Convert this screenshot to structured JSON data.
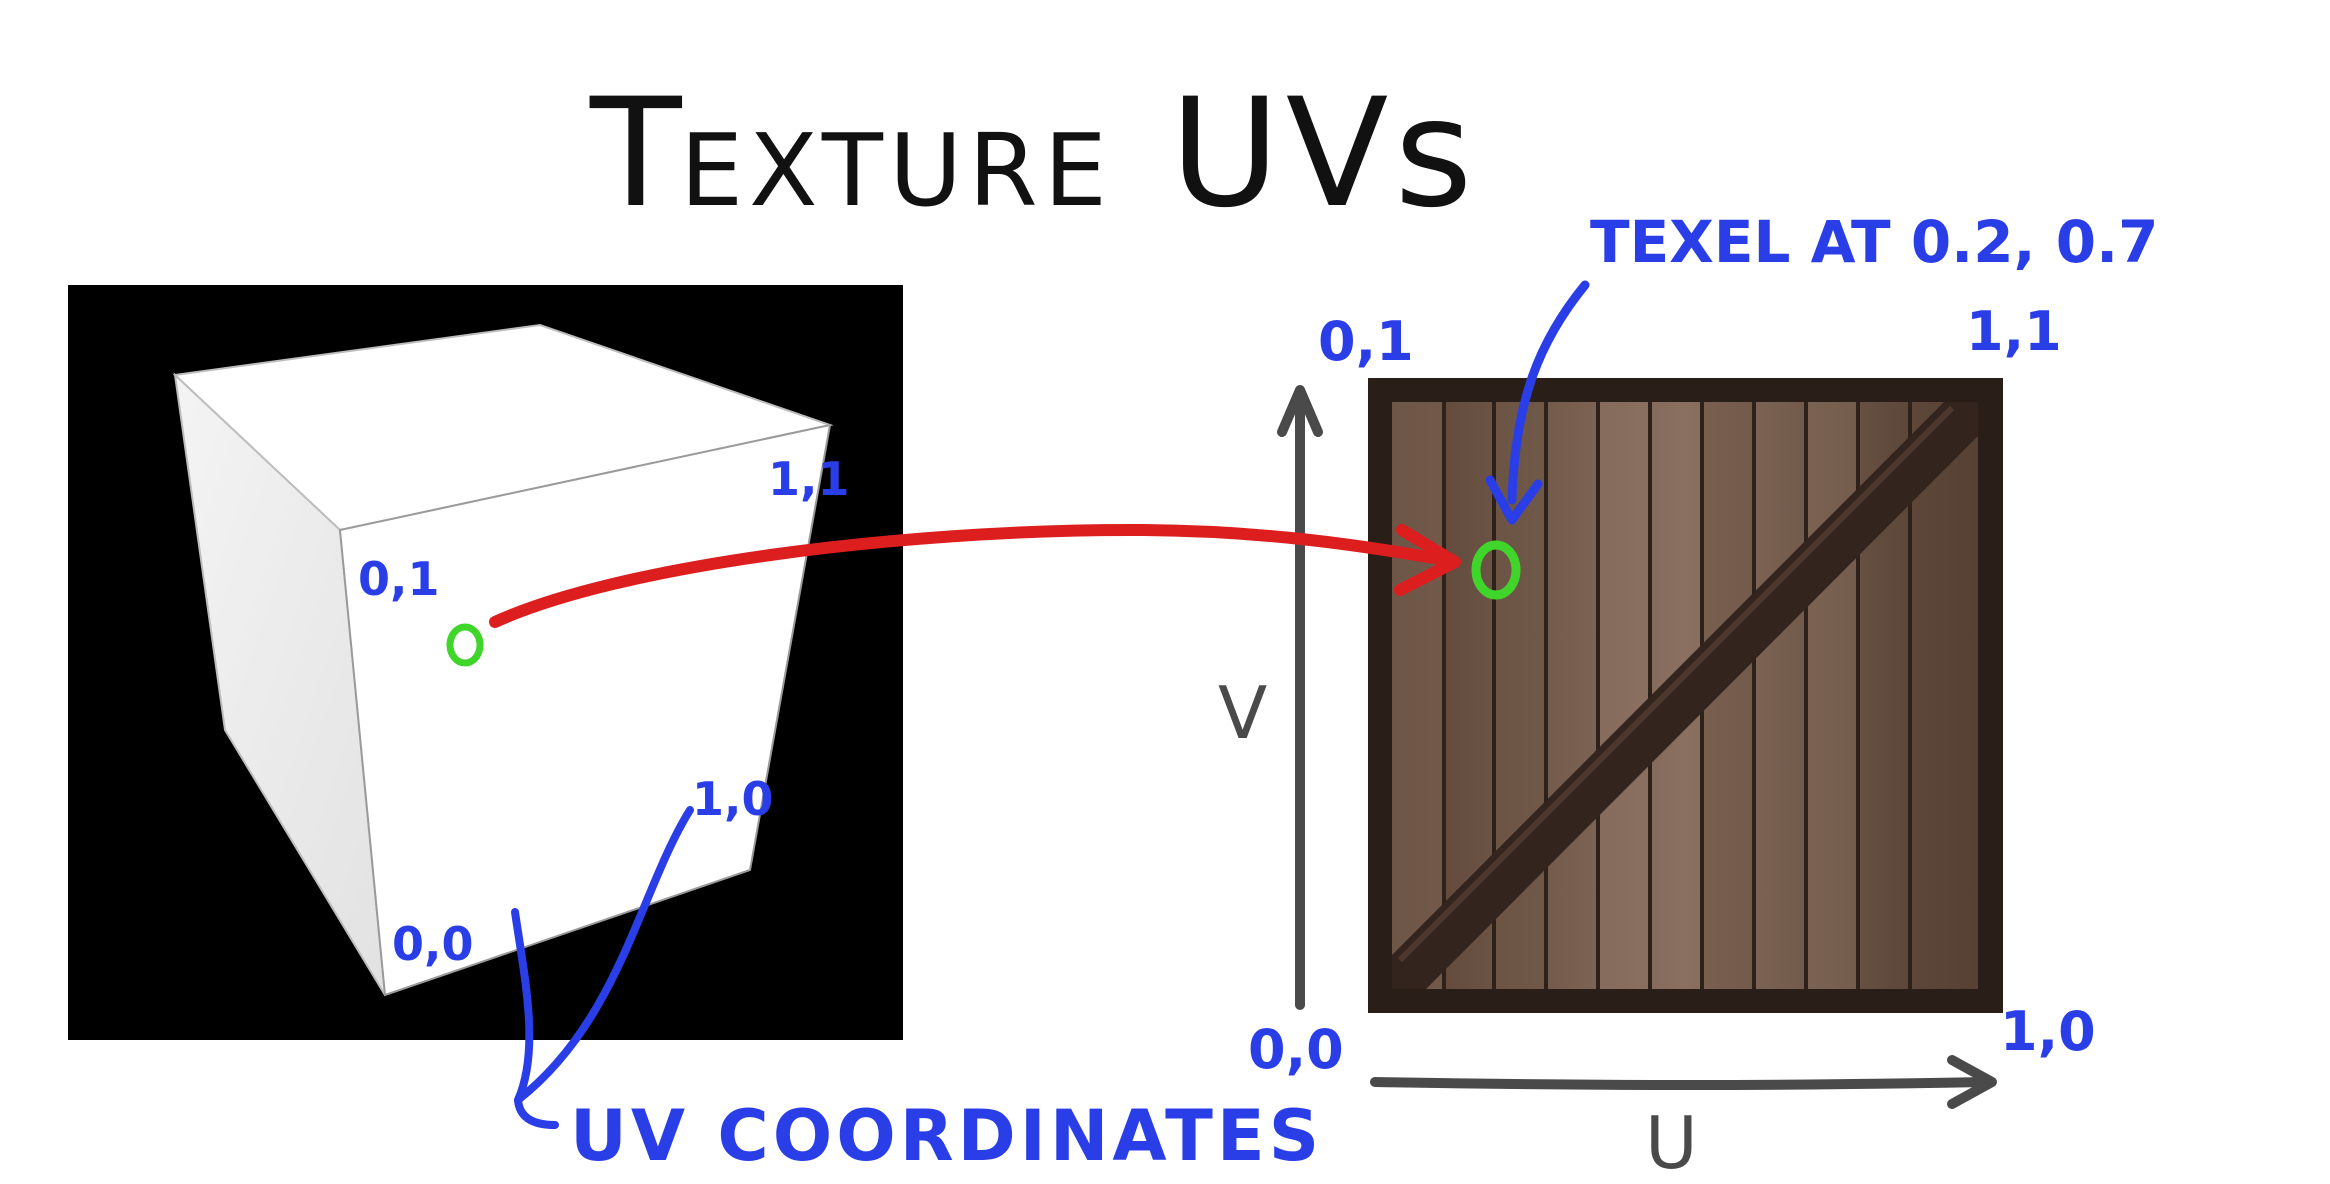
{
  "title": {
    "first_initial": "T",
    "first_rest": "EXTURE",
    "second": "UVs"
  },
  "cube": {
    "labels": {
      "top_left": "0,1",
      "top_right": "1,1",
      "bottom_left": "0,0",
      "bottom_right": "1,0"
    }
  },
  "texture": {
    "corner_labels": {
      "top_left": "0,1",
      "top_right": "1,1",
      "bottom_left": "0,0",
      "bottom_right": "1,0"
    },
    "axis_u": "U",
    "axis_v": "V",
    "texel_annotation": "TEXEL AT 0.2, 0.7"
  },
  "uv_coordinates_label": "UV COORDINATES",
  "colors": {
    "annotation_blue": "#2a3ee8",
    "arrow_red": "#dd1e1e",
    "marker_green": "#3fd52b",
    "axis_gray": "#4a4a4a",
    "wood_dark": "#3b2a20",
    "wood_light": "#8a7060"
  }
}
